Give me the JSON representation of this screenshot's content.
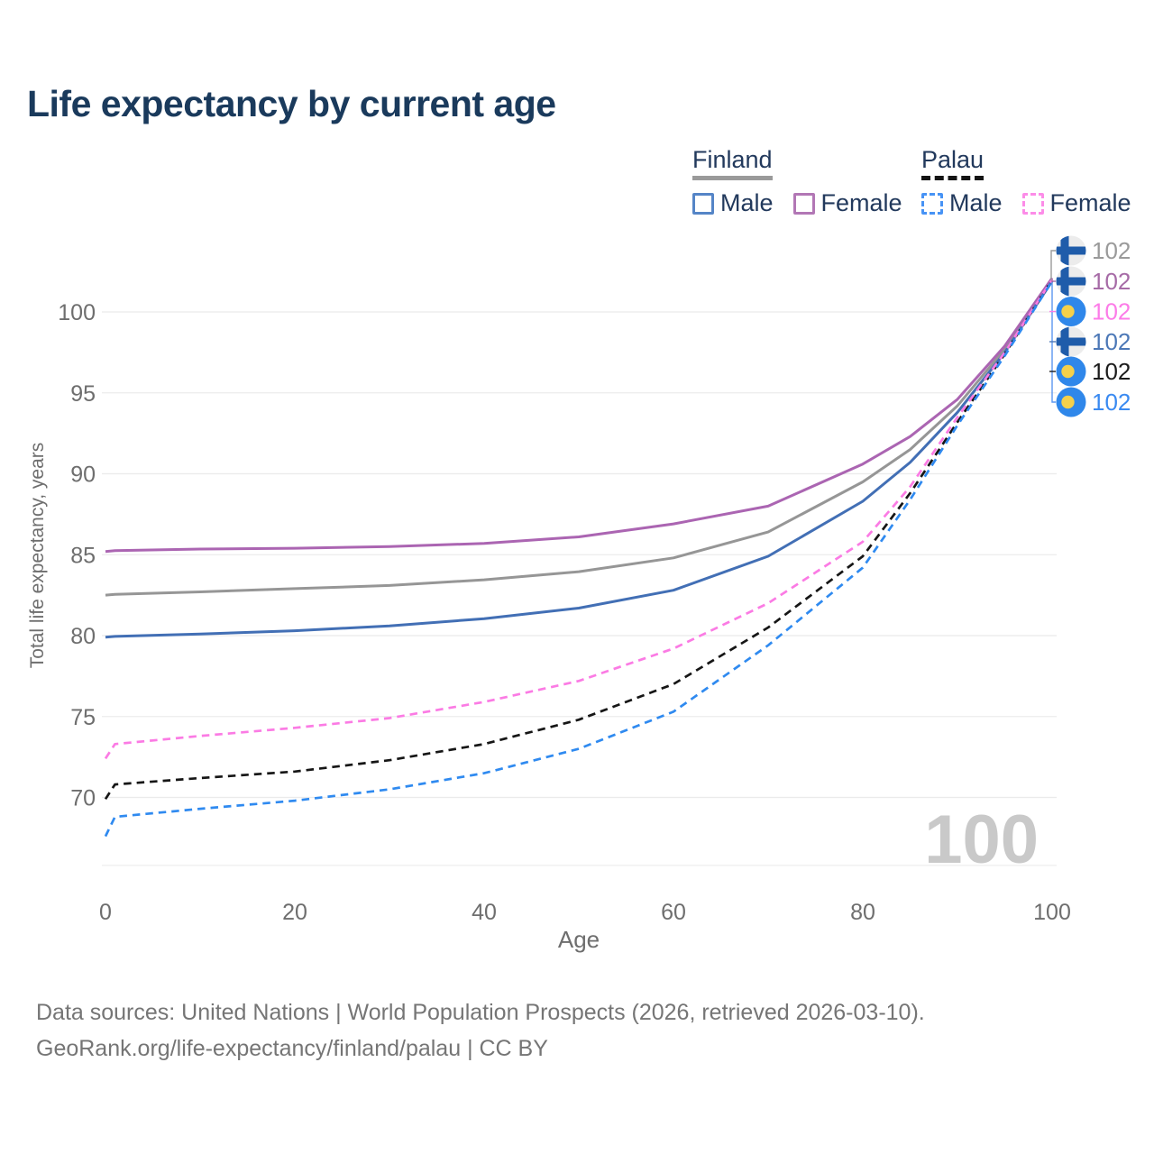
{
  "title": "Life expectancy by current age",
  "watermark": "100",
  "legend": {
    "groups": [
      {
        "name": "Finland",
        "line_style": "solid",
        "line_color": "#9a9a9a",
        "items": [
          {
            "label": "Male",
            "color": "#5585c7"
          },
          {
            "label": "Female",
            "color": "#b277b5"
          }
        ]
      },
      {
        "name": "Palau",
        "line_style": "dashed",
        "line_color": "#141414",
        "items": [
          {
            "label": "Male",
            "color": "#4793f5"
          },
          {
            "label": "Female",
            "color": "#fc8ce8"
          }
        ]
      }
    ]
  },
  "footer": {
    "line1": "Data sources: United Nations | World Population Prospects (2026, retrieved 2026-03-10).",
    "line2": "GeoRank.org/life-expectancy/finland/palau | CC BY"
  },
  "chart_data": {
    "type": "line",
    "title": "Life expectancy by current age",
    "xlabel": "Age",
    "ylabel": "Total life expectancy, years",
    "x_ticks": [
      0,
      20,
      40,
      60,
      80,
      100
    ],
    "y_ticks": [
      70,
      75,
      80,
      85,
      90,
      95,
      100
    ],
    "xlim": [
      0,
      100
    ],
    "ylim": [
      65.8,
      103
    ],
    "grid": "horizontal",
    "legend_position": "top-right",
    "ages": [
      0,
      1,
      10,
      20,
      30,
      40,
      50,
      60,
      70,
      80,
      85,
      90,
      95,
      100
    ],
    "series": [
      {
        "name": "Finland (all)",
        "country": "Finland",
        "sex": "All",
        "style": "solid",
        "color": "#969696",
        "flag": "finland",
        "end_row": 0,
        "end_label": "102",
        "end_label_color": "#9a9a9a",
        "values": [
          82.5,
          82.55,
          82.7,
          82.9,
          83.1,
          83.45,
          83.95,
          84.8,
          86.4,
          89.5,
          91.5,
          94.2,
          97.7,
          102.0
        ]
      },
      {
        "name": "Finland Female",
        "country": "Finland",
        "sex": "Female",
        "style": "solid",
        "color": "#ab65b2",
        "flag": "finland",
        "end_row": 1,
        "end_label": "102",
        "end_label_color": "#a66ba6",
        "values": [
          85.2,
          85.25,
          85.35,
          85.4,
          85.5,
          85.7,
          86.1,
          86.9,
          88.0,
          90.6,
          92.3,
          94.6,
          97.9,
          102.1
        ]
      },
      {
        "name": "Finland Male",
        "country": "Finland",
        "sex": "Male",
        "style": "solid",
        "color": "#426fb5",
        "flag": "finland",
        "end_row": 3,
        "end_label": "102",
        "end_label_color": "#4c78b7",
        "values": [
          79.9,
          79.95,
          80.1,
          80.3,
          80.6,
          81.05,
          81.7,
          82.8,
          84.9,
          88.3,
          90.7,
          93.8,
          97.5,
          101.9
        ]
      },
      {
        "name": "Palau (all)",
        "country": "Palau",
        "sex": "All",
        "style": "dashed",
        "color": "#161616",
        "flag": "palau",
        "end_row": 4,
        "end_label": "102",
        "end_label_color": "#1c1c1c",
        "values": [
          69.9,
          70.8,
          71.2,
          71.6,
          72.3,
          73.3,
          74.8,
          77.0,
          80.5,
          84.9,
          88.8,
          93.2,
          97.4,
          102.0
        ]
      },
      {
        "name": "Palau Female",
        "country": "Palau",
        "sex": "Female",
        "style": "dashed",
        "color": "#fb7be4",
        "flag": "palau",
        "end_row": 2,
        "end_label": "102",
        "end_label_color": "#fc7ce8",
        "values": [
          72.4,
          73.3,
          73.8,
          74.3,
          74.9,
          75.9,
          77.2,
          79.2,
          82.0,
          85.8,
          89.2,
          93.5,
          97.5,
          102.0
        ]
      },
      {
        "name": "Palau Male",
        "country": "Palau",
        "sex": "Male",
        "style": "dashed",
        "color": "#2f8af0",
        "flag": "palau",
        "end_row": 5,
        "end_label": "102",
        "end_label_color": "#3a8af1",
        "values": [
          67.6,
          68.8,
          69.3,
          69.8,
          70.5,
          71.5,
          73.0,
          75.3,
          79.4,
          84.2,
          88.4,
          93.0,
          97.3,
          101.9
        ]
      }
    ]
  }
}
